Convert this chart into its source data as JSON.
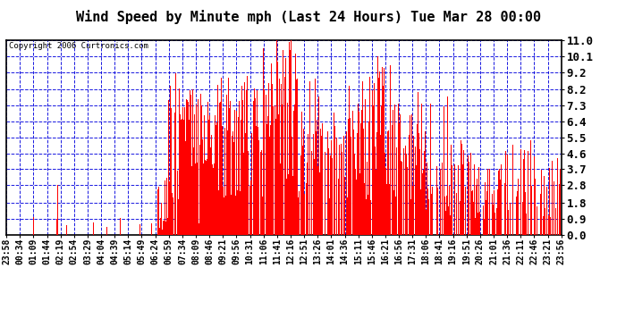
{
  "title": "Wind Speed by Minute mph (Last 24 Hours) Tue Mar 28 00:00",
  "copyright": "Copyright 2006 Curtronics.com",
  "yticks": [
    0.0,
    0.9,
    1.8,
    2.8,
    3.7,
    4.6,
    5.5,
    6.4,
    7.3,
    8.2,
    9.2,
    10.1,
    11.0
  ],
  "ylim": [
    0.0,
    11.0
  ],
  "bar_color": "#ff0000",
  "background_color": "#ffffff",
  "plot_bg_color": "#ffffff",
  "grid_color": "#0000dd",
  "xtick_labels": [
    "23:58",
    "00:34",
    "01:09",
    "01:44",
    "02:19",
    "02:54",
    "03:29",
    "04:04",
    "04:39",
    "05:14",
    "05:49",
    "06:24",
    "06:59",
    "07:34",
    "08:09",
    "08:46",
    "09:21",
    "09:56",
    "10:31",
    "11:06",
    "11:41",
    "12:16",
    "12:51",
    "13:26",
    "14:01",
    "14:36",
    "15:11",
    "15:46",
    "16:21",
    "16:56",
    "17:31",
    "18:06",
    "18:41",
    "19:16",
    "19:51",
    "20:26",
    "21:01",
    "21:36",
    "22:11",
    "22:46",
    "23:21",
    "23:56"
  ],
  "n_minutes": 1440,
  "seed": 42,
  "title_fontsize": 11,
  "ytick_fontsize": 9,
  "xtick_fontsize": 7
}
